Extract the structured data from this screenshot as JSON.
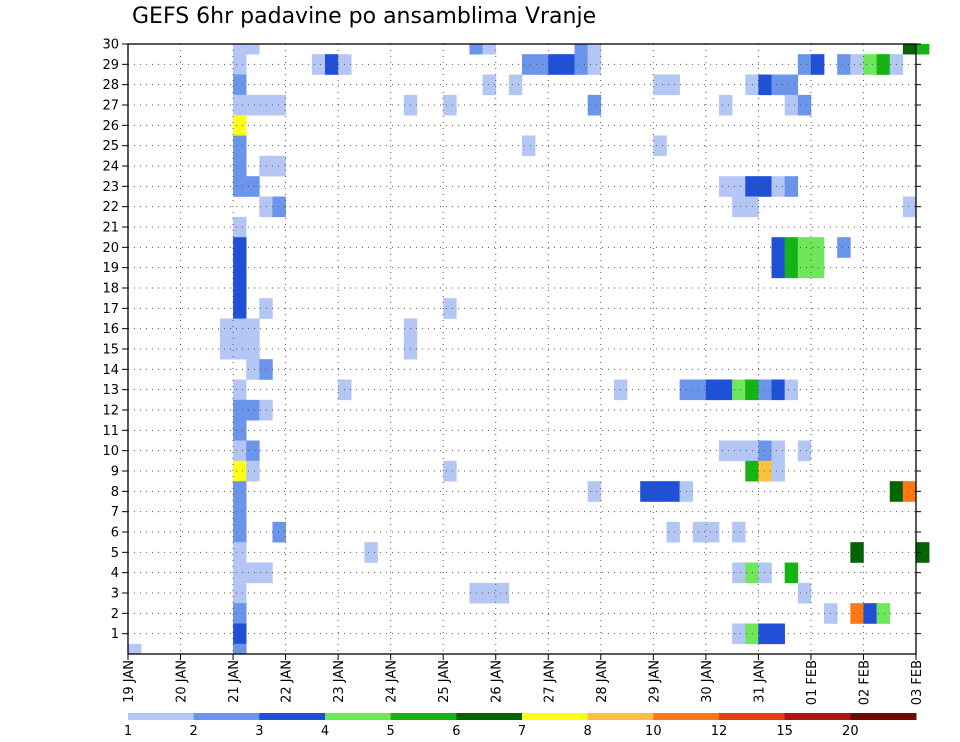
{
  "chart_data": {
    "type": "heatmap",
    "title": "GEFS 6hr padavine po ansamblima Vranje",
    "xlabel": "",
    "ylabel": "",
    "x_tick_labels": [
      "19 JAN",
      "20 JAN",
      "21 JAN",
      "22 JAN",
      "23 JAN",
      "24 JAN",
      "25 JAN",
      "26 JAN",
      "27 JAN",
      "28 JAN",
      "29 JAN",
      "30 JAN",
      "31 JAN",
      "01 FEB",
      "02 FEB",
      "03 FEB"
    ],
    "x_range_days": [
      0,
      15
    ],
    "y_tick_labels": [
      "1",
      "2",
      "3",
      "4",
      "5",
      "6",
      "7",
      "8",
      "9",
      "10",
      "11",
      "12",
      "13",
      "14",
      "15",
      "16",
      "17",
      "18",
      "19",
      "20",
      "21",
      "22",
      "23",
      "24",
      "25",
      "26",
      "27",
      "28",
      "29",
      "30"
    ],
    "y_range": [
      0,
      30
    ],
    "grid": true,
    "colorbar": {
      "labels": [
        "1",
        "2",
        "3",
        "4",
        "5",
        "6",
        "7",
        "8",
        "10",
        "12",
        "15",
        "20"
      ],
      "colors": [
        "#b4c6f4",
        "#6b95ea",
        "#1e50d8",
        "#6ee85a",
        "#14b414",
        "#046404",
        "#ffff14",
        "#ffbe3c",
        "#ff7814",
        "#e63c14",
        "#b41414",
        "#6e0a0a"
      ]
    },
    "cell_width_days": 0.25,
    "cells": [
      [
        30,
        2.0,
        1
      ],
      [
        30,
        2.25,
        1
      ],
      [
        30,
        6.5,
        2
      ],
      [
        30,
        6.75,
        1
      ],
      [
        30,
        8.5,
        2
      ],
      [
        30,
        8.75,
        1
      ],
      [
        30,
        14.75,
        6
      ],
      [
        30,
        15.0,
        5
      ],
      [
        29,
        2.0,
        1
      ],
      [
        29,
        3.5,
        1
      ],
      [
        29,
        3.75,
        3
      ],
      [
        29,
        4.0,
        1
      ],
      [
        29,
        7.5,
        2
      ],
      [
        29,
        7.75,
        2
      ],
      [
        29,
        8.0,
        3
      ],
      [
        29,
        8.25,
        3
      ],
      [
        29,
        8.5,
        2
      ],
      [
        29,
        8.75,
        1
      ],
      [
        29,
        12.75,
        2
      ],
      [
        29,
        13.0,
        3
      ],
      [
        29,
        13.5,
        2
      ],
      [
        29,
        13.75,
        1
      ],
      [
        29,
        14.0,
        4
      ],
      [
        29,
        14.25,
        5
      ],
      [
        29,
        14.5,
        1
      ],
      [
        28,
        2.0,
        2
      ],
      [
        28,
        6.75,
        1
      ],
      [
        28,
        7.25,
        1
      ],
      [
        28,
        10.0,
        1
      ],
      [
        28,
        10.25,
        1
      ],
      [
        28,
        11.75,
        1
      ],
      [
        28,
        12.0,
        3
      ],
      [
        28,
        12.25,
        2
      ],
      [
        28,
        12.5,
        2
      ],
      [
        27,
        2.0,
        1
      ],
      [
        27,
        2.25,
        1
      ],
      [
        27,
        2.5,
        1
      ],
      [
        27,
        2.75,
        1
      ],
      [
        27,
        5.25,
        1
      ],
      [
        27,
        6.0,
        1
      ],
      [
        27,
        8.75,
        2
      ],
      [
        27,
        11.25,
        1
      ],
      [
        27,
        12.5,
        1
      ],
      [
        27,
        12.75,
        2
      ],
      [
        26,
        2.0,
        7
      ],
      [
        25,
        2.0,
        2
      ],
      [
        25,
        7.5,
        1
      ],
      [
        25,
        10.0,
        1
      ],
      [
        24,
        2.0,
        2
      ],
      [
        24,
        2.5,
        1
      ],
      [
        24,
        2.75,
        1
      ],
      [
        23,
        2.0,
        2
      ],
      [
        23,
        2.25,
        2
      ],
      [
        23,
        11.25,
        1
      ],
      [
        23,
        11.5,
        1
      ],
      [
        23,
        11.75,
        3
      ],
      [
        23,
        12.0,
        3
      ],
      [
        23,
        12.25,
        1
      ],
      [
        23,
        12.5,
        2
      ],
      [
        22,
        2.5,
        1
      ],
      [
        22,
        2.75,
        2
      ],
      [
        22,
        11.5,
        1
      ],
      [
        22,
        11.75,
        1
      ],
      [
        22,
        14.75,
        1
      ],
      [
        21,
        2.0,
        1
      ],
      [
        20,
        2.0,
        3
      ],
      [
        20,
        12.25,
        3
      ],
      [
        20,
        12.5,
        5
      ],
      [
        20,
        12.75,
        4
      ],
      [
        20,
        13.0,
        4
      ],
      [
        20,
        13.5,
        2
      ],
      [
        19,
        2.0,
        3
      ],
      [
        19,
        12.25,
        3
      ],
      [
        19,
        12.5,
        5
      ],
      [
        19,
        12.75,
        4
      ],
      [
        19,
        13.0,
        4
      ],
      [
        18,
        2.0,
        3
      ],
      [
        17,
        2.0,
        3
      ],
      [
        17,
        2.5,
        1
      ],
      [
        17,
        6.0,
        1
      ],
      [
        16,
        1.75,
        1
      ],
      [
        16,
        2.0,
        1
      ],
      [
        16,
        2.25,
        1
      ],
      [
        16,
        5.25,
        1
      ],
      [
        15,
        1.75,
        1
      ],
      [
        15,
        2.0,
        1
      ],
      [
        15,
        2.25,
        1
      ],
      [
        15,
        5.25,
        1
      ],
      [
        14,
        2.25,
        1
      ],
      [
        14,
        2.5,
        2
      ],
      [
        13,
        2.0,
        1
      ],
      [
        13,
        4.0,
        1
      ],
      [
        13,
        9.25,
        1
      ],
      [
        13,
        10.5,
        2
      ],
      [
        13,
        10.75,
        2
      ],
      [
        13,
        11.0,
        3
      ],
      [
        13,
        11.25,
        3
      ],
      [
        13,
        11.5,
        4
      ],
      [
        13,
        11.75,
        5
      ],
      [
        13,
        12.0,
        2
      ],
      [
        13,
        12.25,
        3
      ],
      [
        13,
        12.5,
        1
      ],
      [
        12,
        2.0,
        2
      ],
      [
        12,
        2.25,
        2
      ],
      [
        12,
        2.5,
        1
      ],
      [
        11,
        2.0,
        2
      ],
      [
        10,
        2.0,
        1
      ],
      [
        10,
        2.25,
        2
      ],
      [
        10,
        11.25,
        1
      ],
      [
        10,
        11.5,
        1
      ],
      [
        10,
        11.75,
        1
      ],
      [
        10,
        12.0,
        2
      ],
      [
        10,
        12.25,
        1
      ],
      [
        10,
        12.75,
        1
      ],
      [
        9,
        2.0,
        7
      ],
      [
        9,
        2.25,
        1
      ],
      [
        9,
        6.0,
        1
      ],
      [
        9,
        11.75,
        5
      ],
      [
        9,
        12.0,
        8
      ],
      [
        9,
        12.25,
        1
      ],
      [
        8,
        2.0,
        2
      ],
      [
        8,
        8.75,
        1
      ],
      [
        8,
        9.75,
        3
      ],
      [
        8,
        10.0,
        3
      ],
      [
        8,
        10.25,
        3
      ],
      [
        8,
        10.5,
        1
      ],
      [
        8,
        14.5,
        6
      ],
      [
        8,
        14.75,
        9
      ],
      [
        7,
        2.0,
        2
      ],
      [
        6,
        2.0,
        2
      ],
      [
        6,
        2.75,
        2
      ],
      [
        6,
        10.25,
        1
      ],
      [
        6,
        10.75,
        1
      ],
      [
        6,
        11.0,
        1
      ],
      [
        6,
        11.5,
        1
      ],
      [
        5,
        2.0,
        1
      ],
      [
        5,
        4.5,
        1
      ],
      [
        5,
        13.75,
        6
      ],
      [
        5,
        15.0,
        6
      ],
      [
        4,
        2.0,
        1
      ],
      [
        4,
        2.25,
        1
      ],
      [
        4,
        2.5,
        1
      ],
      [
        4,
        11.5,
        1
      ],
      [
        4,
        11.75,
        4
      ],
      [
        4,
        12.0,
        1
      ],
      [
        4,
        12.5,
        5
      ],
      [
        3,
        2.0,
        1
      ],
      [
        3,
        6.5,
        1
      ],
      [
        3,
        6.75,
        1
      ],
      [
        3,
        7.0,
        1
      ],
      [
        3,
        12.75,
        1
      ],
      [
        2,
        2.0,
        2
      ],
      [
        2,
        13.25,
        1
      ],
      [
        2,
        13.75,
        9
      ],
      [
        2,
        14.0,
        3
      ],
      [
        2,
        14.25,
        4
      ],
      [
        1,
        2.0,
        3
      ],
      [
        1,
        11.5,
        1
      ],
      [
        1,
        11.75,
        4
      ],
      [
        1,
        12.0,
        3
      ],
      [
        1,
        12.25,
        3
      ],
      [
        0,
        0.0,
        1
      ],
      [
        0,
        2.0,
        2
      ]
    ]
  }
}
